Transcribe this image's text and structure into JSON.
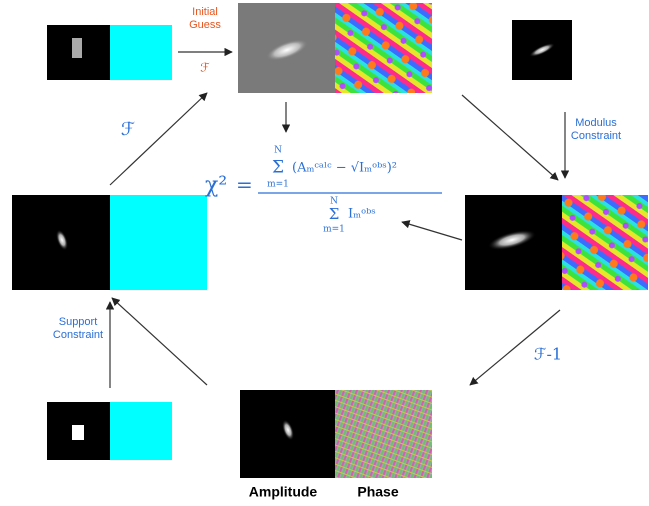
{
  "labels": {
    "initial_guess": [
      "Initial",
      "Guess"
    ],
    "fourier_top": "ℱ",
    "fourier_left": "ℱ",
    "modulus_constraint": [
      "Modulus",
      "Constraint"
    ],
    "inverse_fourier": "ℱ-1",
    "support_constraint": [
      "Support",
      "Constraint"
    ],
    "amplitude": "Amplitude",
    "phase": "Phase"
  },
  "formula": {
    "chi": "χ²",
    "equals": "=",
    "sum_upper": "N",
    "sum_symbol": "Σ",
    "sum_lower": "m=1",
    "numerator_term": "(Aₘᶜᵃˡᶜ − √Iₘᵒᵇˢ)²",
    "denominator_term": "Iₘᵒᵇˢ"
  }
}
